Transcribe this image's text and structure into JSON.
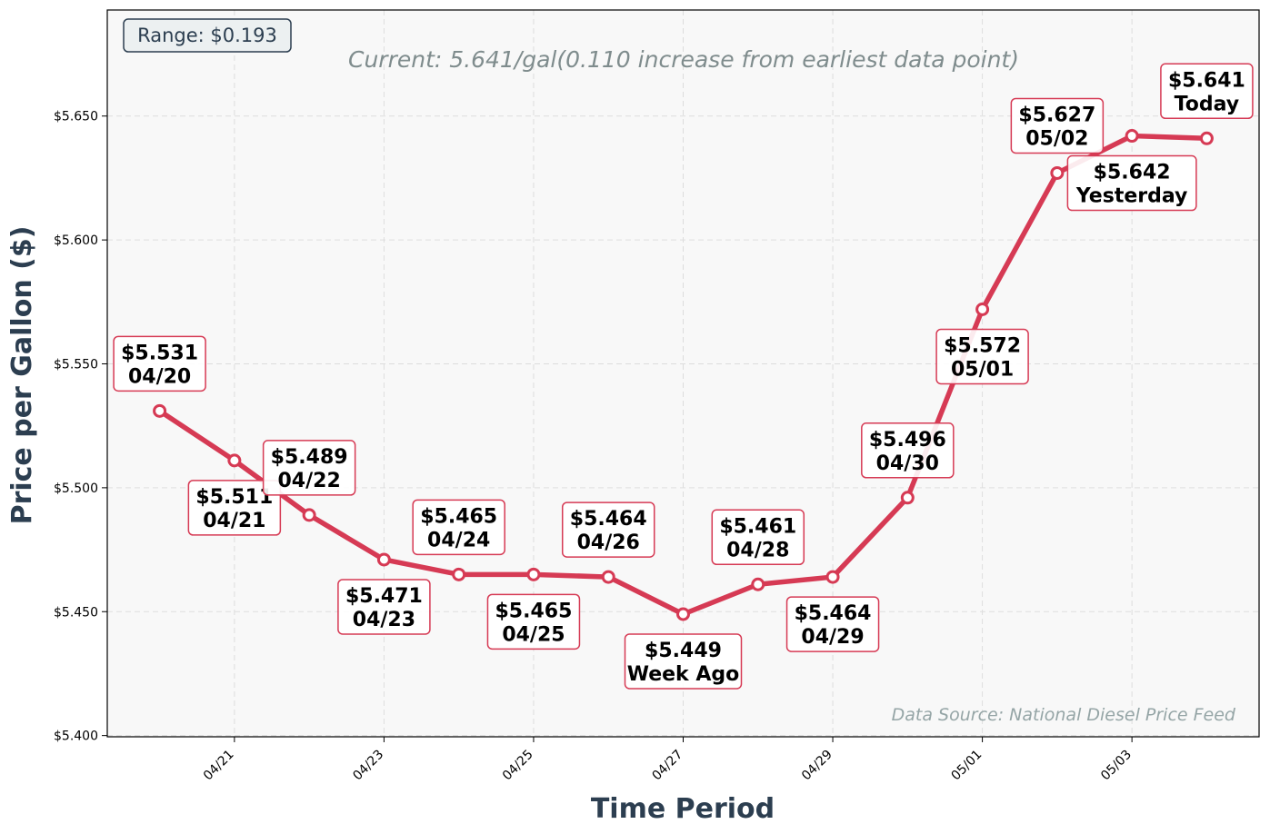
{
  "chart_data": {
    "type": "line",
    "x": [
      "04/20",
      "04/21",
      "04/22",
      "04/23",
      "04/24",
      "04/25",
      "04/26",
      "04/27",
      "04/28",
      "04/29",
      "04/30",
      "05/01",
      "05/02",
      "05/03",
      "05/04"
    ],
    "values": [
      5.531,
      5.511,
      5.489,
      5.471,
      5.465,
      5.465,
      5.464,
      5.449,
      5.461,
      5.464,
      5.496,
      5.572,
      5.627,
      5.642,
      5.641
    ],
    "point_labels": [
      {
        "price": "$5.531",
        "tag": "04/20"
      },
      {
        "price": "$5.511",
        "tag": "04/21"
      },
      {
        "price": "$5.489",
        "tag": "04/22"
      },
      {
        "price": "$5.471",
        "tag": "04/23"
      },
      {
        "price": "$5.465",
        "tag": "04/24"
      },
      {
        "price": "$5.465",
        "tag": "04/25"
      },
      {
        "price": "$5.464",
        "tag": "04/26"
      },
      {
        "price": "$5.449",
        "tag": "Week Ago"
      },
      {
        "price": "$5.461",
        "tag": "04/28"
      },
      {
        "price": "$5.464",
        "tag": "04/29"
      },
      {
        "price": "$5.496",
        "tag": "04/30"
      },
      {
        "price": "$5.572",
        "tag": "05/01"
      },
      {
        "price": "$5.627",
        "tag": "05/02"
      },
      {
        "price": "$5.642",
        "tag": "Yesterday"
      },
      {
        "price": "$5.641",
        "tag": "Today"
      }
    ],
    "xlabel": "Time Period",
    "ylabel": "Price per Gallon ($)",
    "xticks": [
      "04/21",
      "04/23",
      "04/25",
      "04/27",
      "04/29",
      "05/01",
      "05/03"
    ],
    "yticks": [
      "$5.400",
      "$5.450",
      "$5.500",
      "$5.550",
      "$5.600",
      "$5.650"
    ],
    "ylim": [
      5.3995,
      5.6928
    ],
    "xlim_days_from_first": [
      -0.7,
      14.7
    ],
    "grid": true,
    "annotations": {
      "range_box": "Range: $0.193",
      "current": "Current: 5.641/gal(0.110 increase from earliest data point)",
      "source": "Data Source: National Diesel Price Feed"
    },
    "colors": {
      "line": "#d63a54",
      "plot_bg": "#f8f8f8",
      "axis_title": "#2c3e50",
      "subtitle": "#7f8c8d",
      "source": "#95a5a6"
    }
  }
}
